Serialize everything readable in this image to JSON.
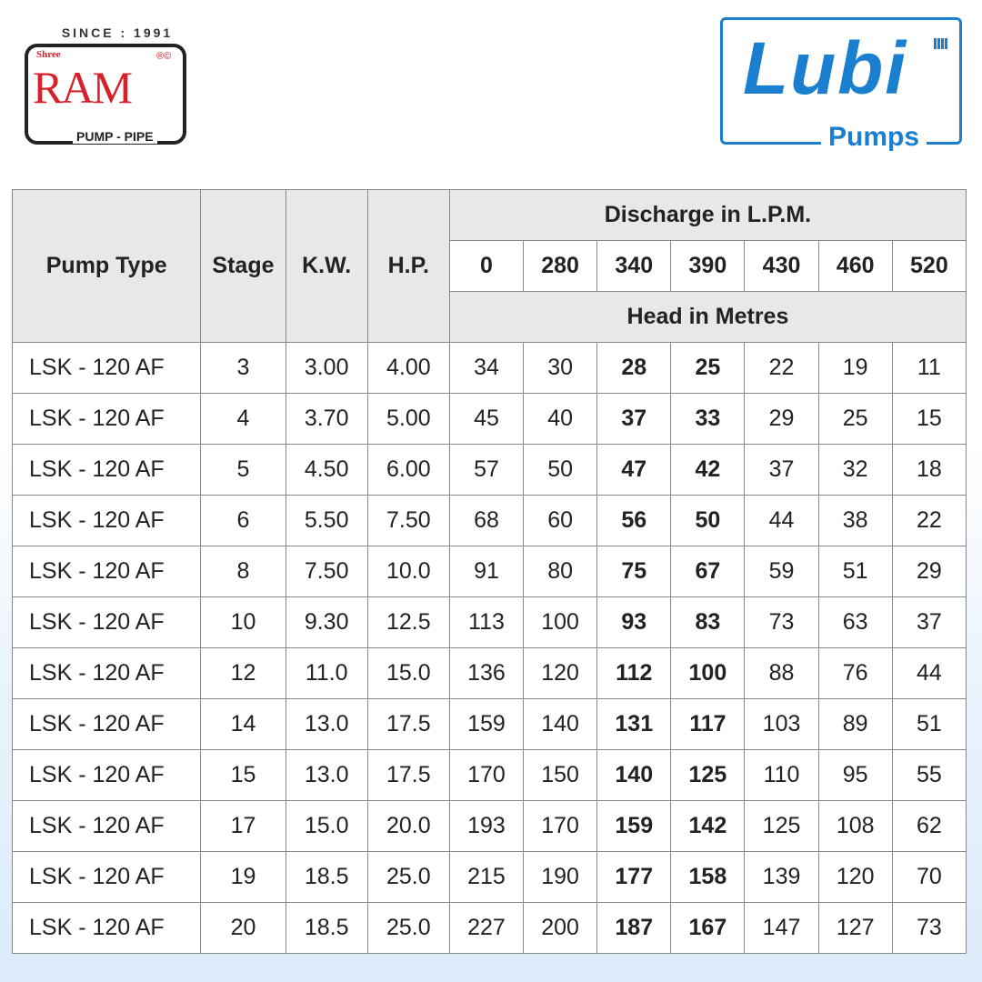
{
  "logos": {
    "left": {
      "since": "SINCE : 1991",
      "shree": "Shree",
      "name": "RAM",
      "reg": "®©",
      "tagline": "PUMP - PIPE"
    },
    "right": {
      "name": "Lubi",
      "sub": "Pumps",
      "color": "#1a7fcf"
    }
  },
  "table": {
    "headers": {
      "pump_type": "Pump Type",
      "stage": "Stage",
      "kw": "K.W.",
      "hp": "H.P.",
      "discharge": "Discharge in L.P.M.",
      "head": "Head in Metres",
      "discharge_values": [
        "0",
        "280",
        "340",
        "390",
        "430",
        "460",
        "520"
      ]
    },
    "bold_columns": [
      "340",
      "390"
    ],
    "rows": [
      [
        "LSK - 120 AF",
        "3",
        "3.00",
        "4.00",
        "34",
        "30",
        "28",
        "25",
        "22",
        "19",
        "11"
      ],
      [
        "LSK - 120 AF",
        "4",
        "3.70",
        "5.00",
        "45",
        "40",
        "37",
        "33",
        "29",
        "25",
        "15"
      ],
      [
        "LSK - 120 AF",
        "5",
        "4.50",
        "6.00",
        "57",
        "50",
        "47",
        "42",
        "37",
        "32",
        "18"
      ],
      [
        "LSK - 120 AF",
        "6",
        "5.50",
        "7.50",
        "68",
        "60",
        "56",
        "50",
        "44",
        "38",
        "22"
      ],
      [
        "LSK - 120 AF",
        "8",
        "7.50",
        "10.0",
        "91",
        "80",
        "75",
        "67",
        "59",
        "51",
        "29"
      ],
      [
        "LSK - 120 AF",
        "10",
        "9.30",
        "12.5",
        "113",
        "100",
        "93",
        "83",
        "73",
        "63",
        "37"
      ],
      [
        "LSK - 120 AF",
        "12",
        "11.0",
        "15.0",
        "136",
        "120",
        "112",
        "100",
        "88",
        "76",
        "44"
      ],
      [
        "LSK - 120 AF",
        "14",
        "13.0",
        "17.5",
        "159",
        "140",
        "131",
        "117",
        "103",
        "89",
        "51"
      ],
      [
        "LSK - 120 AF",
        "15",
        "13.0",
        "17.5",
        "170",
        "150",
        "140",
        "125",
        "110",
        "95",
        "55"
      ],
      [
        "LSK - 120 AF",
        "17",
        "15.0",
        "20.0",
        "193",
        "170",
        "159",
        "142",
        "125",
        "108",
        "62"
      ],
      [
        "LSK - 120 AF",
        "19",
        "18.5",
        "25.0",
        "215",
        "190",
        "177",
        "158",
        "139",
        "120",
        "70"
      ],
      [
        "LSK - 120 AF",
        "20",
        "18.5",
        "25.0",
        "227",
        "200",
        "187",
        "167",
        "147",
        "127",
        "73"
      ]
    ]
  }
}
